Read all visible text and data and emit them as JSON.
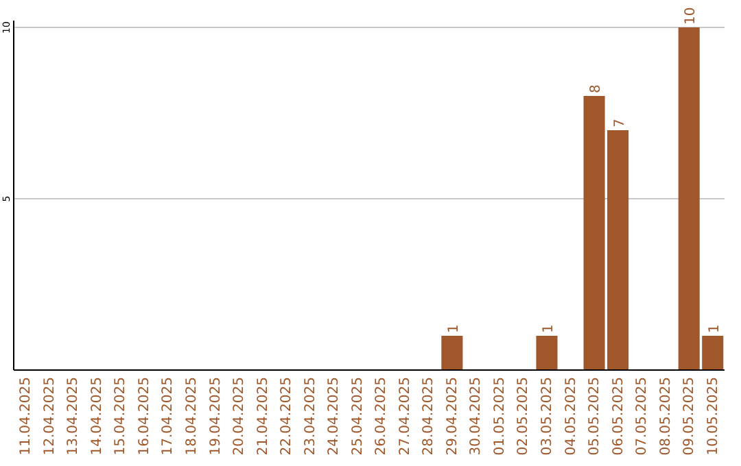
{
  "chart_data": {
    "type": "bar",
    "categories": [
      "11.04.2025",
      "12.04.2025",
      "13.04.2025",
      "14.04.2025",
      "15.04.2025",
      "16.04.2025",
      "17.04.2025",
      "18.04.2025",
      "19.04.2025",
      "20.04.2025",
      "21.04.2025",
      "22.04.2025",
      "23.04.2025",
      "24.04.2025",
      "25.04.2025",
      "26.04.2025",
      "27.04.2025",
      "28.04.2025",
      "29.04.2025",
      "30.04.2025",
      "01.05.2025",
      "02.05.2025",
      "03.05.2025",
      "04.05.2025",
      "05.05.2025",
      "06.05.2025",
      "07.05.2025",
      "08.05.2025",
      "09.05.2025",
      "10.05.2025"
    ],
    "values": [
      0,
      0,
      0,
      0,
      0,
      0,
      0,
      0,
      0,
      0,
      0,
      0,
      0,
      0,
      0,
      0,
      0,
      0,
      1,
      0,
      0,
      0,
      1,
      0,
      8,
      7,
      0,
      0,
      10,
      1
    ],
    "value_labels": [
      null,
      null,
      null,
      null,
      null,
      null,
      null,
      null,
      null,
      null,
      null,
      null,
      null,
      null,
      null,
      null,
      null,
      null,
      "1",
      null,
      null,
      null,
      "1",
      null,
      "8",
      "7",
      null,
      null,
      "10",
      "1"
    ],
    "color": "#a0582a",
    "ylim": [
      0,
      10
    ],
    "yticks": [
      5,
      10
    ],
    "grid": "y"
  }
}
